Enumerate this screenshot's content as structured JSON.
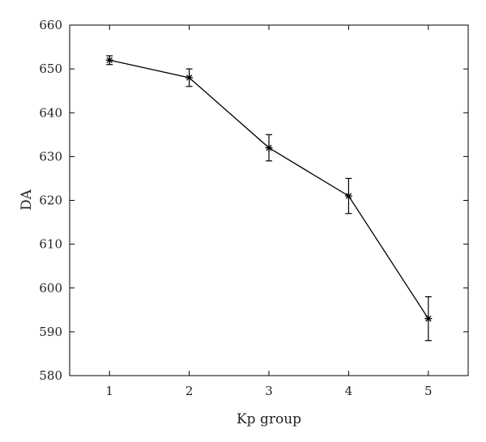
{
  "chart_data": {
    "type": "line",
    "xlabel": "Kp group",
    "ylabel": "DA",
    "x": [
      1,
      2,
      3,
      4,
      5
    ],
    "xlim": [
      0.5,
      5.5
    ],
    "ylim": [
      580,
      660
    ],
    "xticks": [
      1,
      2,
      3,
      4,
      5
    ],
    "yticks": [
      580,
      590,
      600,
      610,
      620,
      630,
      640,
      650,
      660
    ],
    "grid": false,
    "series": [
      {
        "values": [
          652,
          648,
          632,
          621,
          593
        ],
        "error_low": [
          651,
          646,
          629,
          617,
          588
        ],
        "error_high": [
          653,
          650,
          635,
          625,
          598
        ],
        "marker": "asterisk",
        "color": "#000000"
      }
    ]
  }
}
